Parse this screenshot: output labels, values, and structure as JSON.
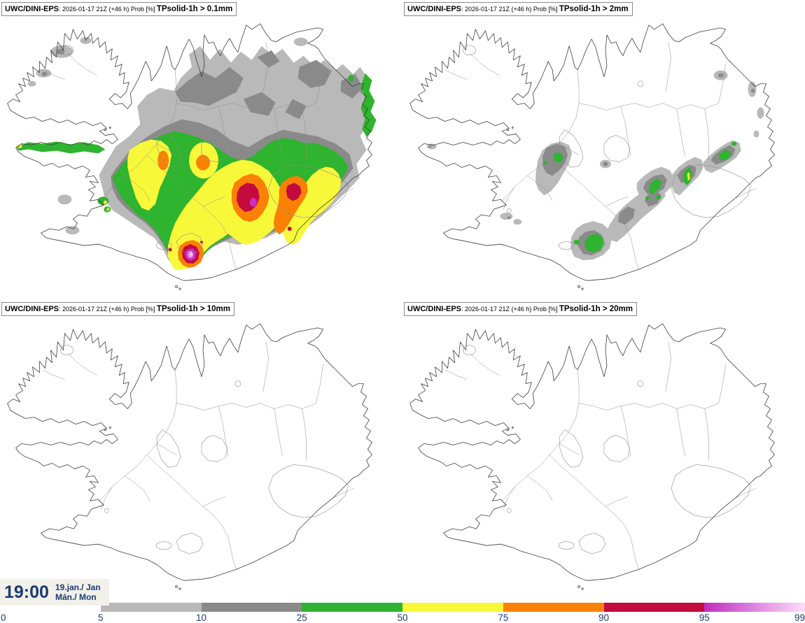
{
  "panels": [
    {
      "product": "UWC/DINI-EPS",
      "meta": ": 2026-01-17 21Z (+46 h) Prob [%] ",
      "threshold": "TPsolid-1h > 0.1mm"
    },
    {
      "product": "UWC/DINI-EPS",
      "meta": ": 2026-01-17 21Z (+46 h) Prob [%] ",
      "threshold": "TPsolid-1h > 2mm"
    },
    {
      "product": "UWC/DINI-EPS",
      "meta": ": 2026-01-17 21Z (+46 h) Prob [%] ",
      "threshold": "TPsolid-1h > 10mm"
    },
    {
      "product": "UWC/DINI-EPS",
      "meta": ": 2026-01-17 21Z (+46 h) Prob [%] ",
      "threshold": "TPsolid-1h > 20mm"
    }
  ],
  "clock": {
    "time": "19:00",
    "date_line1": "19.jan./ Jan",
    "date_line2": "Mán./ Mon"
  },
  "legend": {
    "ticks": [
      "0",
      "5",
      "10",
      "25",
      "50",
      "75",
      "90",
      "95",
      "99"
    ],
    "segments": [
      {
        "range": "0-5",
        "color": "#ffffff"
      },
      {
        "range": "5-10",
        "color": "#b9b9b9"
      },
      {
        "range": "10-25",
        "color": "#8a8a8a"
      },
      {
        "range": "25-50",
        "color": "#2eb42e"
      },
      {
        "range": "50-75",
        "color": "#f8f83a"
      },
      {
        "range": "75-90",
        "color": "#fb8104"
      },
      {
        "range": "90-95",
        "color": "#c30b3e"
      },
      {
        "range": "95-99",
        "gradient_from": "#c32bc2",
        "gradient_to": "#fbdffa"
      }
    ]
  },
  "palette": {
    "lightgray": "#b9b9b9",
    "darkgray": "#8a8a8a",
    "green": "#2eb42e",
    "yellow": "#f8f83a",
    "orange": "#fb8104",
    "crimson": "#c30b3e",
    "magenta": "#cb2ec6",
    "pink": "#ee8fe4",
    "palepink": "#f9d9f7",
    "coastline": "#3d3d3d",
    "innerline": "#8f8f8f",
    "navy": "#1c3a70",
    "clockbg": "#f1f1ea",
    "titleborder": "#8a8a8a"
  }
}
